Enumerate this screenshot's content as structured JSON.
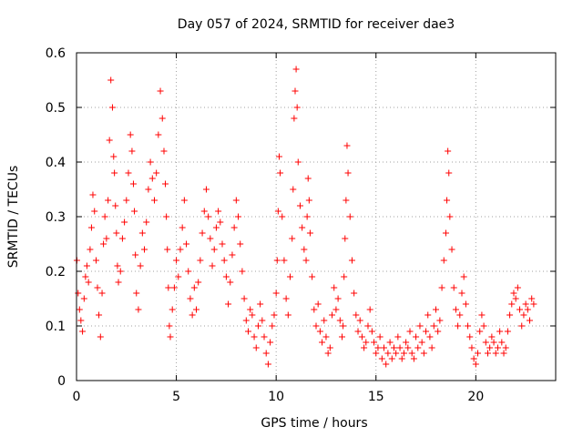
{
  "chart_data": {
    "type": "scatter",
    "title": "Day 057 of 2024, SRMTID for receiver dae3",
    "xlabel": "GPS time / hours",
    "ylabel": "SRMTID / TECUs",
    "xlim": [
      0,
      24
    ],
    "ylim": [
      0,
      0.6
    ],
    "xticks": [
      0,
      5,
      10,
      15,
      20
    ],
    "xtick_labels": [
      "0",
      "5",
      "10",
      "15",
      "20"
    ],
    "yticks": [
      0,
      0.1,
      0.2,
      0.3,
      0.4,
      0.5,
      0.6
    ],
    "ytick_labels": [
      "0",
      "0.1",
      "0.2",
      "0.3",
      "0.4",
      "0.5",
      "0.6"
    ],
    "grid": true,
    "marker": "+",
    "color": "#ff0000",
    "series": [
      {
        "name": "SRMTID",
        "x": [
          0.02,
          0.08,
          0.15,
          0.22,
          0.3,
          0.38,
          0.45,
          0.52,
          0.6,
          0.68,
          0.75,
          0.82,
          0.9,
          0.98,
          1.05,
          1.12,
          1.2,
          1.28,
          1.35,
          1.42,
          1.5,
          1.58,
          1.65,
          1.72,
          1.8,
          1.86,
          1.9,
          1.95,
          2.0,
          2.05,
          2.1,
          2.2,
          2.3,
          2.4,
          2.5,
          2.6,
          2.7,
          2.78,
          2.85,
          2.9,
          2.95,
          3.0,
          3.1,
          3.2,
          3.3,
          3.4,
          3.5,
          3.6,
          3.7,
          3.8,
          3.9,
          4.0,
          4.1,
          4.2,
          4.3,
          4.38,
          4.45,
          4.5,
          4.55,
          4.6,
          4.65,
          4.7,
          4.8,
          4.9,
          5.0,
          5.1,
          5.2,
          5.3,
          5.4,
          5.5,
          5.6,
          5.7,
          5.8,
          5.9,
          6.0,
          6.1,
          6.2,
          6.3,
          6.4,
          6.5,
          6.6,
          6.7,
          6.8,
          6.9,
          7.0,
          7.1,
          7.2,
          7.3,
          7.4,
          7.5,
          7.6,
          7.7,
          7.8,
          7.9,
          8.0,
          8.1,
          8.2,
          8.3,
          8.4,
          8.5,
          8.6,
          8.7,
          8.8,
          8.9,
          9.0,
          9.1,
          9.2,
          9.3,
          9.4,
          9.5,
          9.6,
          9.7,
          9.8,
          9.9,
          10.0,
          10.05,
          10.1,
          10.15,
          10.2,
          10.3,
          10.4,
          10.5,
          10.6,
          10.7,
          10.8,
          10.85,
          10.9,
          10.95,
          11.0,
          11.05,
          11.1,
          11.2,
          11.3,
          11.4,
          11.5,
          11.55,
          11.6,
          11.65,
          11.7,
          11.8,
          11.9,
          12.0,
          12.1,
          12.2,
          12.3,
          12.4,
          12.5,
          12.6,
          12.7,
          12.8,
          12.9,
          13.0,
          13.1,
          13.2,
          13.3,
          13.35,
          13.4,
          13.45,
          13.5,
          13.55,
          13.6,
          13.7,
          13.8,
          13.9,
          14.0,
          14.1,
          14.2,
          14.3,
          14.4,
          14.5,
          14.6,
          14.7,
          14.8,
          14.9,
          15.0,
          15.1,
          15.2,
          15.3,
          15.4,
          15.5,
          15.6,
          15.7,
          15.8,
          15.9,
          16.0,
          16.1,
          16.2,
          16.3,
          16.4,
          16.5,
          16.6,
          16.7,
          16.8,
          16.9,
          17.0,
          17.1,
          17.2,
          17.3,
          17.4,
          17.5,
          17.6,
          17.7,
          17.8,
          17.9,
          18.0,
          18.1,
          18.2,
          18.3,
          18.4,
          18.5,
          18.55,
          18.6,
          18.65,
          18.7,
          18.8,
          18.9,
          19.0,
          19.1,
          19.2,
          19.3,
          19.4,
          19.5,
          19.6,
          19.7,
          19.8,
          19.9,
          20.0,
          20.1,
          20.2,
          20.3,
          20.4,
          20.5,
          20.6,
          20.7,
          20.8,
          20.9,
          21.0,
          21.1,
          21.2,
          21.3,
          21.4,
          21.5,
          21.6,
          21.7,
          21.8,
          21.9,
          22.0,
          22.1,
          22.2,
          22.3,
          22.4,
          22.5,
          22.6,
          22.7,
          22.8,
          22.9
        ],
        "y": [
          0.22,
          0.16,
          0.13,
          0.11,
          0.09,
          0.15,
          0.19,
          0.21,
          0.18,
          0.24,
          0.28,
          0.34,
          0.31,
          0.22,
          0.17,
          0.12,
          0.08,
          0.16,
          0.25,
          0.3,
          0.26,
          0.33,
          0.44,
          0.55,
          0.5,
          0.41,
          0.38,
          0.32,
          0.27,
          0.21,
          0.18,
          0.2,
          0.26,
          0.29,
          0.33,
          0.38,
          0.45,
          0.42,
          0.36,
          0.31,
          0.23,
          0.16,
          0.13,
          0.21,
          0.27,
          0.24,
          0.29,
          0.35,
          0.4,
          0.37,
          0.33,
          0.38,
          0.45,
          0.53,
          0.48,
          0.42,
          0.36,
          0.3,
          0.24,
          0.17,
          0.1,
          0.08,
          0.13,
          0.17,
          0.22,
          0.19,
          0.24,
          0.28,
          0.33,
          0.25,
          0.2,
          0.15,
          0.12,
          0.17,
          0.13,
          0.18,
          0.22,
          0.27,
          0.31,
          0.35,
          0.3,
          0.26,
          0.21,
          0.24,
          0.28,
          0.31,
          0.29,
          0.25,
          0.22,
          0.19,
          0.14,
          0.18,
          0.23,
          0.28,
          0.33,
          0.3,
          0.25,
          0.2,
          0.15,
          0.11,
          0.09,
          0.13,
          0.12,
          0.08,
          0.06,
          0.1,
          0.14,
          0.11,
          0.08,
          0.05,
          0.03,
          0.07,
          0.1,
          0.12,
          0.16,
          0.22,
          0.31,
          0.41,
          0.38,
          0.3,
          0.22,
          0.15,
          0.12,
          0.19,
          0.26,
          0.35,
          0.48,
          0.53,
          0.57,
          0.5,
          0.4,
          0.32,
          0.28,
          0.24,
          0.22,
          0.3,
          0.37,
          0.33,
          0.27,
          0.19,
          0.13,
          0.1,
          0.14,
          0.09,
          0.07,
          0.11,
          0.08,
          0.05,
          0.06,
          0.12,
          0.17,
          0.13,
          0.15,
          0.11,
          0.08,
          0.1,
          0.19,
          0.26,
          0.33,
          0.43,
          0.38,
          0.3,
          0.22,
          0.16,
          0.12,
          0.09,
          0.11,
          0.08,
          0.06,
          0.07,
          0.1,
          0.13,
          0.09,
          0.07,
          0.05,
          0.06,
          0.08,
          0.04,
          0.06,
          0.03,
          0.05,
          0.07,
          0.04,
          0.06,
          0.05,
          0.08,
          0.06,
          0.04,
          0.05,
          0.07,
          0.06,
          0.09,
          0.05,
          0.04,
          0.08,
          0.06,
          0.1,
          0.07,
          0.05,
          0.09,
          0.12,
          0.08,
          0.06,
          0.1,
          0.13,
          0.09,
          0.11,
          0.17,
          0.22,
          0.27,
          0.33,
          0.42,
          0.38,
          0.3,
          0.24,
          0.17,
          0.13,
          0.1,
          0.12,
          0.16,
          0.19,
          0.14,
          0.1,
          0.08,
          0.06,
          0.04,
          0.03,
          0.05,
          0.09,
          0.12,
          0.1,
          0.07,
          0.05,
          0.06,
          0.08,
          0.07,
          0.05,
          0.06,
          0.09,
          0.07,
          0.05,
          0.06,
          0.09,
          0.12,
          0.14,
          0.16,
          0.15,
          0.17,
          0.13,
          0.1,
          0.12,
          0.14,
          0.13,
          0.11,
          0.15,
          0.14
        ]
      }
    ]
  }
}
